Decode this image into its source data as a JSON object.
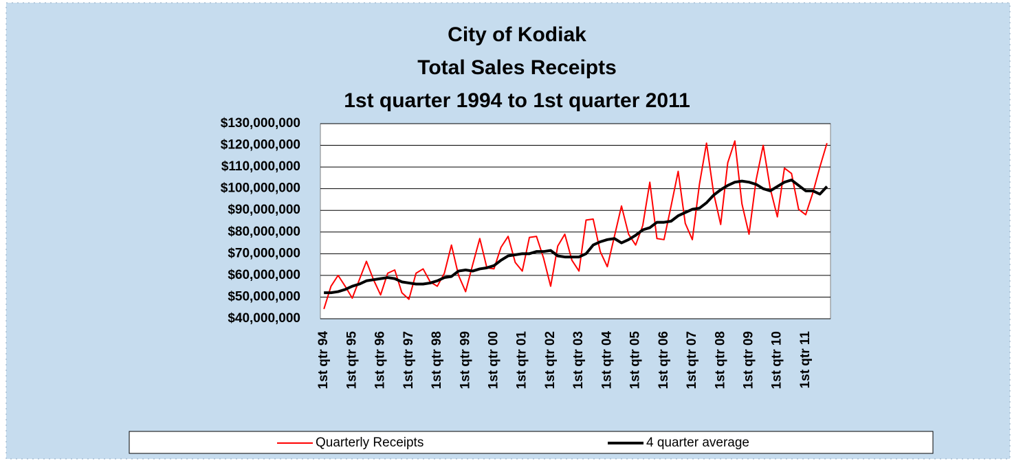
{
  "chart_data": {
    "type": "line",
    "title": [
      "City of Kodiak",
      "Total Sales Receipts",
      "1st quarter 1994 to 1st quarter 2011"
    ],
    "categories": [
      "1st qtr 94",
      null,
      null,
      null,
      "1st qtr 95",
      null,
      null,
      null,
      "1st qtr 96",
      null,
      null,
      null,
      "1st qtr 97",
      null,
      null,
      null,
      "1st qtr 98",
      null,
      null,
      null,
      "1st qtr 99",
      null,
      null,
      null,
      "1st qtr 00",
      null,
      null,
      null,
      "1st qtr 01",
      null,
      null,
      null,
      "1st qtr 02",
      null,
      null,
      null,
      "1st qtr 03",
      null,
      null,
      null,
      "1st qtr 04",
      null,
      null,
      null,
      "1st qtr 05",
      null,
      null,
      null,
      "1st qtr 06",
      null,
      null,
      null,
      "1st qtr 07",
      null,
      null,
      null,
      "1st qtr 08",
      null,
      null,
      null,
      "1st qtr 09",
      null,
      null,
      null,
      "1st qtr 10",
      null,
      null,
      null,
      "1st qtr 11",
      null,
      null,
      null
    ],
    "series": [
      {
        "name": "Quarterly Receipts",
        "color": "#ff0000",
        "width": 2,
        "values": [
          44500000,
          55000000,
          60000000,
          55000000,
          49500000,
          58000000,
          66500000,
          58000000,
          51000000,
          61000000,
          62500000,
          52000000,
          49000000,
          61000000,
          63000000,
          57000000,
          55000000,
          61000000,
          74000000,
          60000000,
          52500000,
          65000000,
          77000000,
          63500000,
          63000000,
          73000000,
          78000000,
          66000000,
          62000000,
          77500000,
          78000000,
          68000000,
          55000000,
          73500000,
          79000000,
          67000000,
          62000000,
          85500000,
          86000000,
          71000000,
          64000000,
          78000000,
          92000000,
          79000000,
          74000000,
          83000000,
          103000000,
          77000000,
          76500000,
          92000000,
          108000000,
          84000000,
          76500000,
          102000000,
          121000000,
          98000000,
          83500000,
          112000000,
          122000000,
          93000000,
          79000000,
          104000000,
          120000000,
          100000000,
          87000000,
          109500000,
          107000000,
          90500000,
          88000000,
          98000000,
          110000000,
          121000000
        ]
      },
      {
        "name": "4 quarter average",
        "color": "#000000",
        "width": 4,
        "values": [
          52000000,
          52000000,
          52500000,
          53500000,
          55000000,
          56000000,
          57500000,
          58000000,
          58500000,
          59000000,
          58500000,
          57000000,
          56500000,
          56000000,
          56000000,
          56500000,
          57500000,
          59000000,
          59500000,
          62000000,
          62500000,
          62000000,
          63000000,
          63500000,
          64500000,
          67000000,
          69000000,
          69500000,
          70000000,
          70000000,
          71000000,
          71000000,
          71500000,
          69000000,
          68500000,
          68500000,
          68500000,
          70000000,
          74000000,
          75500000,
          76500000,
          77000000,
          75000000,
          76500000,
          78500000,
          81000000,
          82000000,
          84500000,
          84500000,
          85000000,
          87500000,
          89000000,
          90500000,
          91000000,
          93500000,
          97000000,
          99500000,
          101500000,
          103000000,
          103500000,
          103000000,
          102000000,
          100000000,
          99000000,
          101000000,
          103000000,
          104000000,
          101500000,
          99000000,
          99000000,
          97500000,
          101000000
        ]
      }
    ],
    "ylim": [
      40000000,
      130000000
    ],
    "yticks": [
      {
        "value": 40000000,
        "label": "$40,000,000"
      },
      {
        "value": 50000000,
        "label": "$50,000,000"
      },
      {
        "value": 60000000,
        "label": "$60,000,000"
      },
      {
        "value": 70000000,
        "label": "$70,000,000"
      },
      {
        "value": 80000000,
        "label": "$80,000,000"
      },
      {
        "value": 90000000,
        "label": "$90,000,000"
      },
      {
        "value": 100000000,
        "label": "$100,000,000"
      },
      {
        "value": 110000000,
        "label": "$110,000,000"
      },
      {
        "value": 120000000,
        "label": "$120,000,000"
      },
      {
        "value": 130000000,
        "label": "$130,000,000"
      }
    ],
    "grid": true,
    "legend": "bottom"
  }
}
